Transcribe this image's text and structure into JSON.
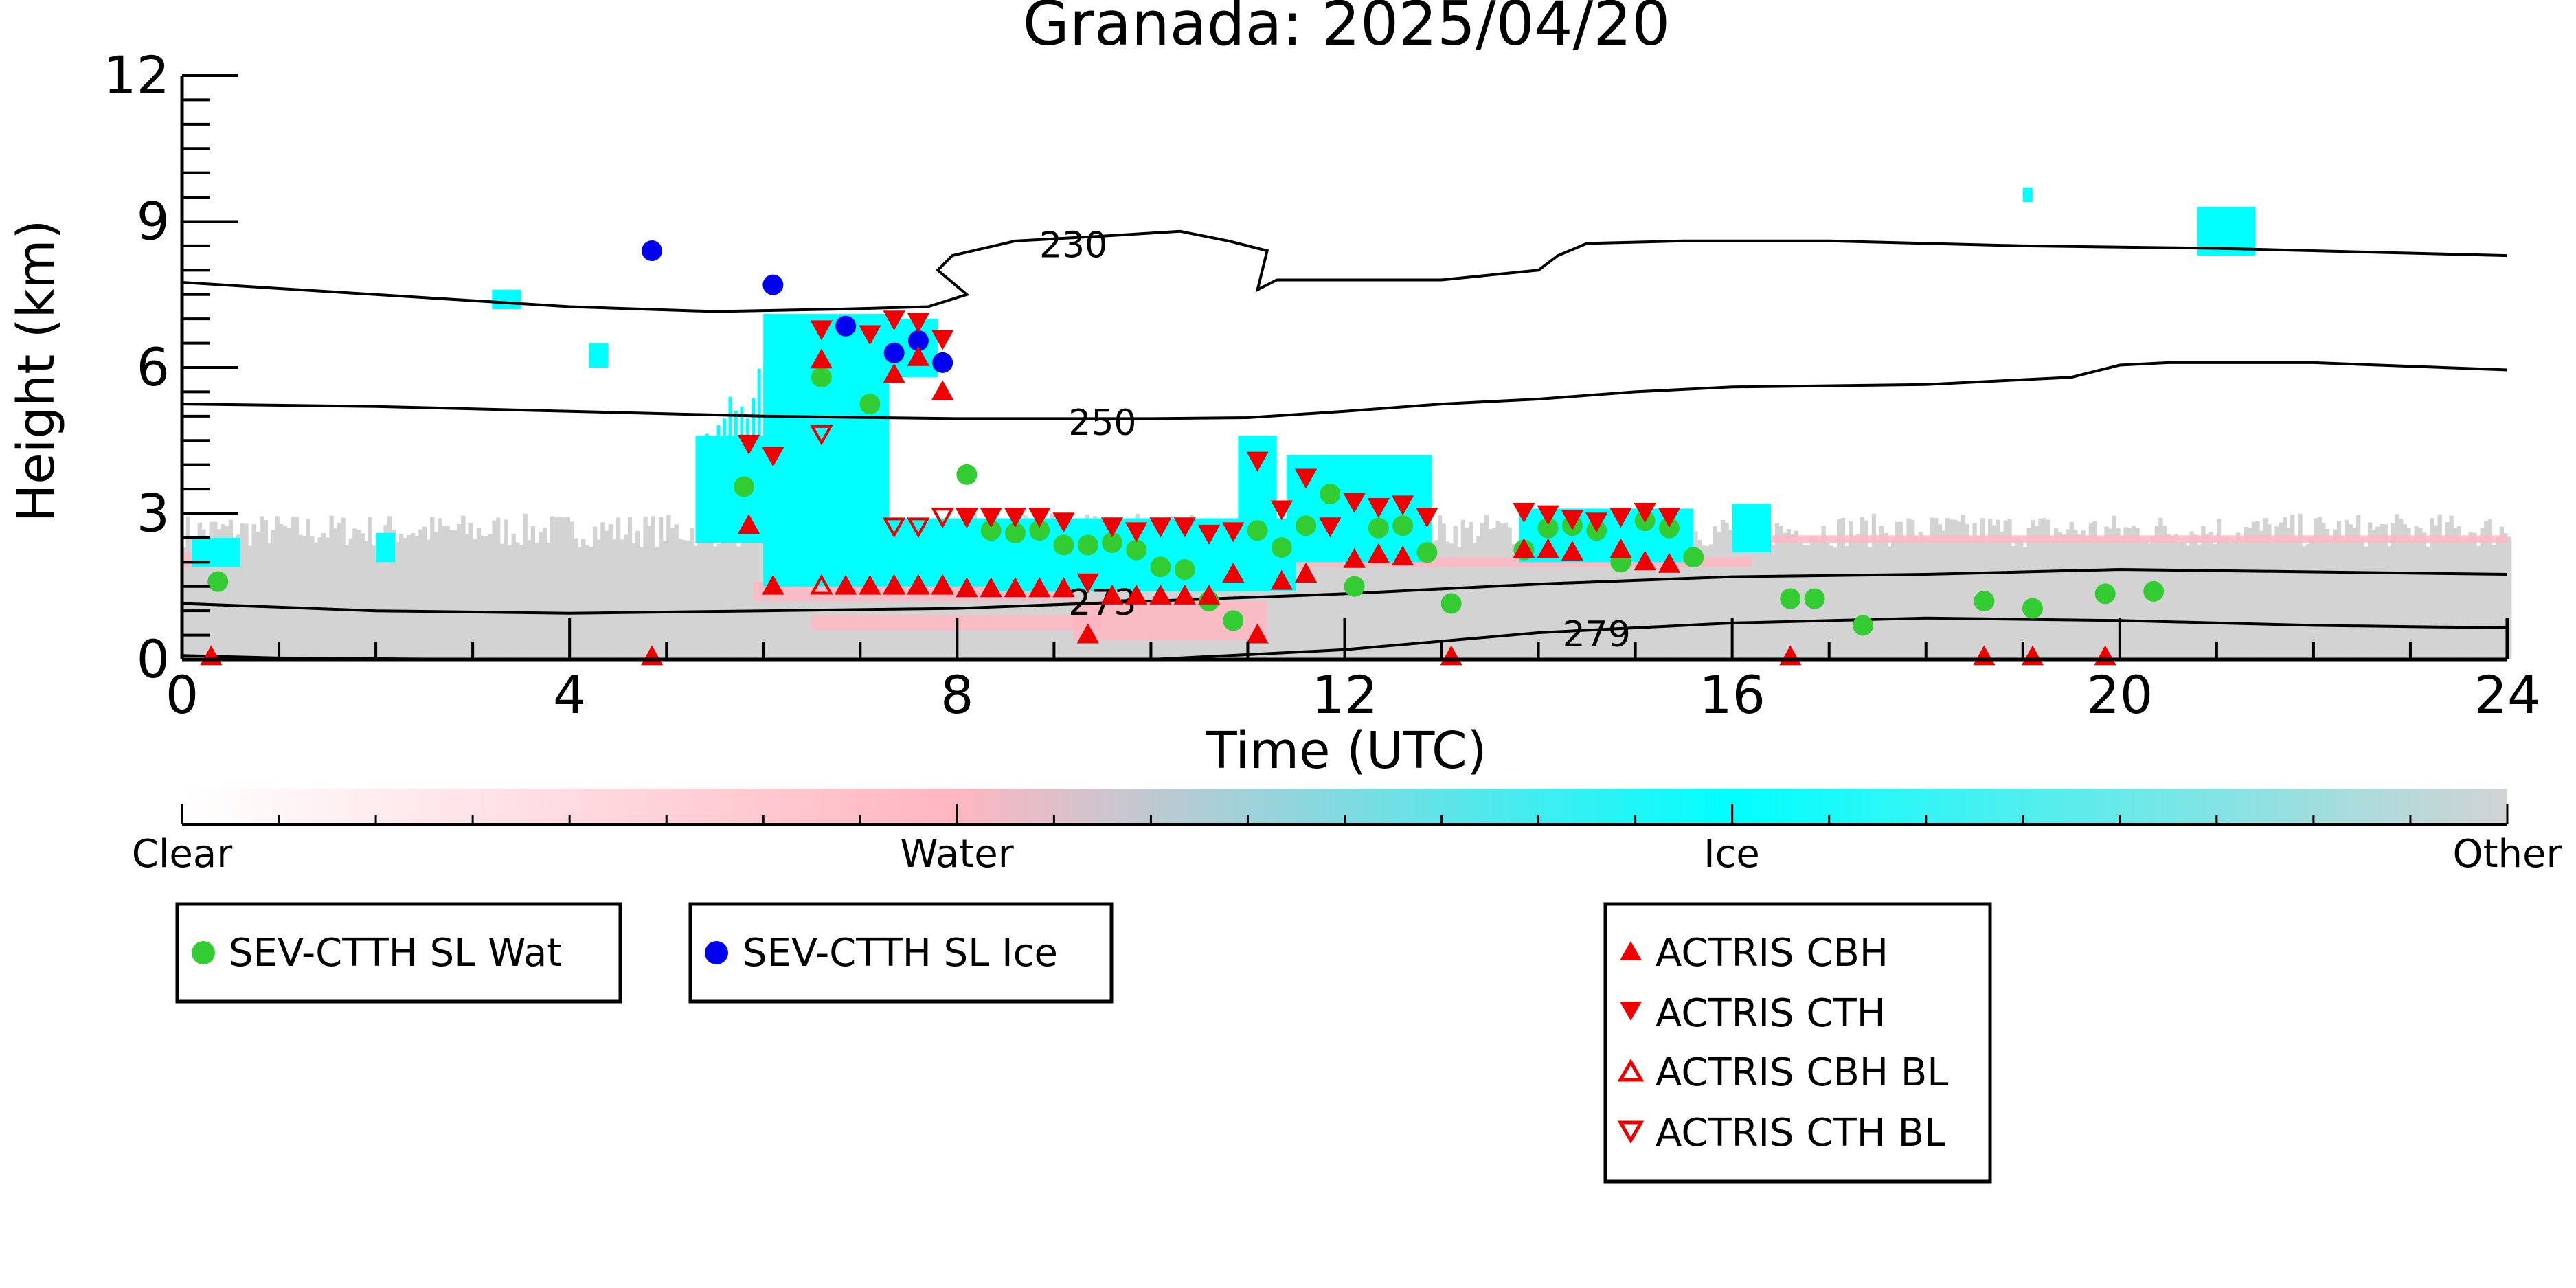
{
  "figure": {
    "title": "Granada: 2025/04/20"
  },
  "chart_data": {
    "type": "scatter",
    "title": "Granada: 2025/04/20",
    "xlabel": "Time (UTC)",
    "ylabel": "Height (km)",
    "xlim": [
      0,
      24
    ],
    "ylim": [
      0,
      12
    ],
    "xticks": [
      "0",
      "4",
      "8",
      "12",
      "16",
      "20",
      "24"
    ],
    "yticks": [
      "0",
      "3",
      "6",
      "9",
      "12"
    ],
    "grid": false,
    "colorbar": {
      "labels": [
        "Clear",
        "Water",
        "Ice",
        "Other"
      ],
      "colors": {
        "clear": "#ffffff",
        "water": "#ffb6c1",
        "ice": "#00ffff",
        "other": "#d3d3d3"
      }
    },
    "series": [
      {
        "name": "SEV-CTTH SL Wat",
        "marker": "circle",
        "color": "#33cc33",
        "points": [
          [
            0.37,
            1.6
          ],
          [
            5.8,
            3.55
          ],
          [
            6.6,
            5.8
          ],
          [
            7.1,
            5.25
          ],
          [
            8.1,
            3.8
          ],
          [
            8.35,
            2.65
          ],
          [
            8.6,
            2.6
          ],
          [
            8.85,
            2.65
          ],
          [
            9.1,
            2.35
          ],
          [
            9.35,
            2.35
          ],
          [
            9.6,
            2.4
          ],
          [
            9.85,
            2.25
          ],
          [
            10.1,
            1.9
          ],
          [
            10.35,
            1.85
          ],
          [
            10.6,
            1.2
          ],
          [
            10.85,
            0.8
          ],
          [
            11.1,
            2.65
          ],
          [
            11.35,
            2.3
          ],
          [
            11.6,
            2.75
          ],
          [
            11.85,
            3.4
          ],
          [
            12.1,
            1.5
          ],
          [
            12.35,
            2.7
          ],
          [
            12.6,
            2.75
          ],
          [
            12.85,
            2.2
          ],
          [
            13.1,
            1.15
          ],
          [
            13.85,
            2.25
          ],
          [
            14.1,
            2.7
          ],
          [
            14.35,
            2.75
          ],
          [
            14.6,
            2.65
          ],
          [
            14.85,
            2.0
          ],
          [
            15.1,
            2.85
          ],
          [
            15.35,
            2.7
          ],
          [
            15.6,
            2.1
          ],
          [
            16.6,
            1.25
          ],
          [
            16.85,
            1.25
          ],
          [
            17.35,
            0.7
          ],
          [
            18.6,
            1.2
          ],
          [
            19.1,
            1.05
          ],
          [
            19.85,
            1.35
          ],
          [
            20.35,
            1.4
          ]
        ]
      },
      {
        "name": "SEV-CTTH SL Ice",
        "marker": "circle",
        "color": "#0000ee",
        "points": [
          [
            4.85,
            8.4
          ],
          [
            6.1,
            7.7
          ],
          [
            6.85,
            6.85
          ],
          [
            7.35,
            6.3
          ],
          [
            7.6,
            6.55
          ],
          [
            7.85,
            6.1
          ]
        ]
      },
      {
        "name": "ACTRIS CBH",
        "marker": "triangle-up",
        "color": "#ee0000",
        "points": [
          [
            0.3,
            0.05
          ],
          [
            4.85,
            0.05
          ],
          [
            5.85,
            2.75
          ],
          [
            6.1,
            1.5
          ],
          [
            6.6,
            6.15
          ],
          [
            6.85,
            1.5
          ],
          [
            7.1,
            1.5
          ],
          [
            7.35,
            1.5
          ],
          [
            7.35,
            5.85
          ],
          [
            7.6,
            1.5
          ],
          [
            7.6,
            6.2
          ],
          [
            7.85,
            1.5
          ],
          [
            7.85,
            5.5
          ],
          [
            8.1,
            1.45
          ],
          [
            8.35,
            1.45
          ],
          [
            8.6,
            1.45
          ],
          [
            8.85,
            1.45
          ],
          [
            9.1,
            1.45
          ],
          [
            9.35,
            0.5
          ],
          [
            9.6,
            1.3
          ],
          [
            9.85,
            1.3
          ],
          [
            10.1,
            1.3
          ],
          [
            10.35,
            1.3
          ],
          [
            10.6,
            1.3
          ],
          [
            10.85,
            1.75
          ],
          [
            11.1,
            0.5
          ],
          [
            11.35,
            1.6
          ],
          [
            11.6,
            1.75
          ],
          [
            12.1,
            2.05
          ],
          [
            12.35,
            2.15
          ],
          [
            12.6,
            2.1
          ],
          [
            13.1,
            0.05
          ],
          [
            13.85,
            2.25
          ],
          [
            14.1,
            2.25
          ],
          [
            14.35,
            2.2
          ],
          [
            14.85,
            2.25
          ],
          [
            15.1,
            2.0
          ],
          [
            15.35,
            1.95
          ],
          [
            16.6,
            0.05
          ],
          [
            18.6,
            0.05
          ],
          [
            19.1,
            0.05
          ],
          [
            19.85,
            0.05
          ]
        ]
      },
      {
        "name": "ACTRIS CTH",
        "marker": "triangle-down",
        "color": "#ee0000",
        "points": [
          [
            5.85,
            4.45
          ],
          [
            6.1,
            4.2
          ],
          [
            6.6,
            6.8
          ],
          [
            7.1,
            6.7
          ],
          [
            7.35,
            7.0
          ],
          [
            7.6,
            6.95
          ],
          [
            7.85,
            6.6
          ],
          [
            8.1,
            2.95
          ],
          [
            8.35,
            2.95
          ],
          [
            8.6,
            2.95
          ],
          [
            8.85,
            2.95
          ],
          [
            9.1,
            2.85
          ],
          [
            9.35,
            1.6
          ],
          [
            9.6,
            2.75
          ],
          [
            9.85,
            2.65
          ],
          [
            10.1,
            2.75
          ],
          [
            10.35,
            2.75
          ],
          [
            10.6,
            2.6
          ],
          [
            10.85,
            2.65
          ],
          [
            11.1,
            4.1
          ],
          [
            11.35,
            3.1
          ],
          [
            11.6,
            3.75
          ],
          [
            11.85,
            2.75
          ],
          [
            12.1,
            3.25
          ],
          [
            12.35,
            3.15
          ],
          [
            12.6,
            3.2
          ],
          [
            12.85,
            2.95
          ],
          [
            13.85,
            3.05
          ],
          [
            14.1,
            3.0
          ],
          [
            14.35,
            2.9
          ],
          [
            14.6,
            2.85
          ],
          [
            14.85,
            2.95
          ],
          [
            15.1,
            3.05
          ],
          [
            15.35,
            2.95
          ]
        ]
      },
      {
        "name": "ACTRIS CBH BL",
        "marker": "triangle-up-open",
        "color": "#ee0000",
        "points": [
          [
            6.6,
            1.5
          ],
          [
            7.35,
            1.5
          ],
          [
            7.6,
            1.5
          ],
          [
            7.85,
            1.5
          ]
        ]
      },
      {
        "name": "ACTRIS CTH BL",
        "marker": "triangle-down-open",
        "color": "#ee0000",
        "points": [
          [
            6.6,
            4.65
          ],
          [
            7.35,
            2.75
          ],
          [
            7.6,
            2.75
          ],
          [
            7.85,
            2.95
          ],
          [
            8.1,
            2.95
          ]
        ]
      }
    ],
    "contours": [
      {
        "label": "230",
        "label_at": [
          9.2,
          8.55
        ],
        "points": [
          [
            0,
            7.75
          ],
          [
            2,
            7.5
          ],
          [
            4,
            7.25
          ],
          [
            5.5,
            7.15
          ],
          [
            6.8,
            7.2
          ],
          [
            7.7,
            7.25
          ],
          [
            8.1,
            7.5
          ],
          [
            7.8,
            8.0
          ],
          [
            7.95,
            8.3
          ],
          [
            8.6,
            8.6
          ],
          [
            9.5,
            8.7
          ],
          [
            10.3,
            8.8
          ],
          [
            10.8,
            8.6
          ],
          [
            11.2,
            8.4
          ],
          [
            11.1,
            7.6
          ],
          [
            11.3,
            7.8
          ],
          [
            12,
            7.8
          ],
          [
            13,
            7.8
          ],
          [
            14,
            8.0
          ],
          [
            14.2,
            8.3
          ],
          [
            14.5,
            8.55
          ],
          [
            15.5,
            8.6
          ],
          [
            17,
            8.6
          ],
          [
            19,
            8.5
          ],
          [
            21,
            8.45
          ],
          [
            24,
            8.3
          ]
        ]
      },
      {
        "label": "250",
        "label_at": [
          9.5,
          4.9
        ],
        "points": [
          [
            0,
            5.25
          ],
          [
            2,
            5.2
          ],
          [
            4,
            5.1
          ],
          [
            6,
            5.0
          ],
          [
            8,
            4.95
          ],
          [
            10,
            4.95
          ],
          [
            11,
            4.97
          ],
          [
            12,
            5.1
          ],
          [
            13,
            5.25
          ],
          [
            14,
            5.35
          ],
          [
            15,
            5.5
          ],
          [
            16,
            5.6
          ],
          [
            18,
            5.65
          ],
          [
            19.5,
            5.8
          ],
          [
            20,
            6.05
          ],
          [
            20.5,
            6.1
          ],
          [
            22,
            6.1
          ],
          [
            24,
            5.95
          ]
        ]
      },
      {
        "label": "273",
        "label_at": [
          9.5,
          1.2
        ],
        "points": [
          [
            0,
            1.15
          ],
          [
            2,
            1.0
          ],
          [
            4,
            0.95
          ],
          [
            6,
            1.0
          ],
          [
            8,
            1.05
          ],
          [
            10,
            1.2
          ],
          [
            12,
            1.35
          ],
          [
            14,
            1.55
          ],
          [
            16,
            1.7
          ],
          [
            18,
            1.75
          ],
          [
            20,
            1.85
          ],
          [
            22,
            1.8
          ],
          [
            24,
            1.75
          ]
        ]
      },
      {
        "label": "279",
        "label_at": [
          14.6,
          0.55
        ],
        "points": [
          [
            0,
            0.08
          ],
          [
            1,
            0.03
          ],
          [
            3,
            0.0
          ],
          [
            10,
            0.0
          ],
          [
            12,
            0.2
          ],
          [
            14,
            0.55
          ],
          [
            16,
            0.75
          ],
          [
            18,
            0.85
          ],
          [
            20,
            0.8
          ],
          [
            22,
            0.7
          ],
          [
            24,
            0.65
          ]
        ]
      }
    ],
    "legend_boxes": [
      {
        "entries": [
          "SEV-CTTH SL Wat"
        ]
      },
      {
        "entries": [
          "SEV-CTTH SL Ice"
        ]
      },
      {
        "entries": [
          "ACTRIS CBH",
          "ACTRIS CTH",
          "ACTRIS CBH BL",
          "ACTRIS CTH BL"
        ]
      }
    ]
  }
}
